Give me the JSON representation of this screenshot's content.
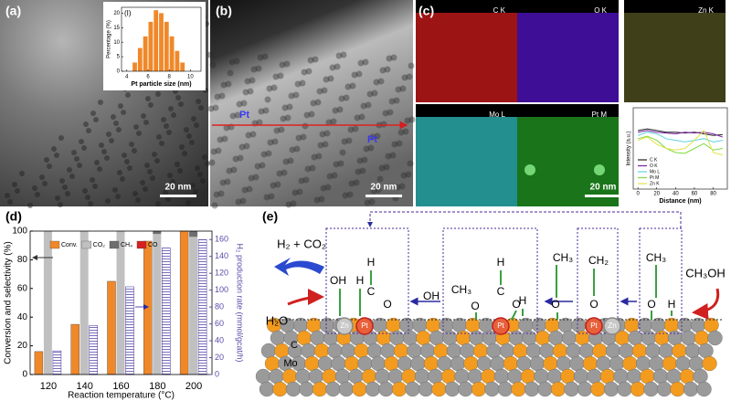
{
  "panels": {
    "a": {
      "label": "(a)",
      "scale_bar": "20 nm"
    },
    "b": {
      "label": "(b)",
      "scale_bar": "20 nm",
      "markers": [
        "Pt",
        "Pt"
      ]
    },
    "c": {
      "label": "(c)",
      "scale_bar": "20 nm",
      "maps": [
        "C K",
        "O K",
        "Zn K",
        "Mo L",
        "Pt M"
      ]
    },
    "d": {
      "label": "(d)"
    },
    "e": {
      "label": "(e)"
    }
  },
  "chart_data": [
    {
      "type": "histogram",
      "label": "(I)",
      "bins": [
        4.5,
        5,
        5.5,
        6,
        6.5,
        7,
        7.5,
        8,
        8.5,
        9,
        9.5
      ],
      "values": [
        3,
        8,
        12,
        17,
        21,
        20,
        17,
        12,
        7,
        3
      ],
      "color": "#f0882a",
      "xlabel": "Pt particle size (nm)",
      "ylabel": "Percentage (%)",
      "xlim": [
        3.5,
        11
      ],
      "ylim": [
        0,
        22
      ],
      "xticks": [
        4,
        6,
        8,
        10
      ],
      "yticks": [
        0,
        5,
        10,
        15,
        20
      ]
    },
    {
      "type": "line",
      "x": [
        0,
        10,
        20,
        30,
        40,
        50,
        60,
        70,
        80,
        90
      ],
      "series": [
        {
          "name": "C K",
          "color": "#222222",
          "values": [
            0.72,
            0.74,
            0.72,
            0.7,
            0.7,
            0.69,
            0.7,
            0.68,
            0.66,
            0.67
          ]
        },
        {
          "name": "O K",
          "color": "#7b1fa2",
          "values": [
            0.7,
            0.72,
            0.7,
            0.69,
            0.68,
            0.7,
            0.69,
            0.7,
            0.68,
            0.64
          ]
        },
        {
          "name": "Mo L",
          "color": "#5fd3e0",
          "values": [
            0.66,
            0.7,
            0.68,
            0.62,
            0.6,
            0.58,
            0.6,
            0.62,
            0.58,
            0.6
          ]
        },
        {
          "name": "Pt M",
          "color": "#7ddc3c",
          "values": [
            0.62,
            0.65,
            0.6,
            0.5,
            0.45,
            0.44,
            0.5,
            0.56,
            0.48,
            0.5
          ]
        },
        {
          "name": "Zn K",
          "color": "#e6e04a",
          "values": [
            0.6,
            0.64,
            0.55,
            0.5,
            0.48,
            0.5,
            0.6,
            0.72,
            0.45,
            0.42
          ]
        }
      ],
      "xlabel": "Distance (nm)",
      "ylabel": "Intensity (a.u.)",
      "xlim": [
        -5,
        95
      ],
      "ylim": [
        0,
        1
      ],
      "xticks": [
        0,
        20,
        40,
        60,
        80
      ]
    },
    {
      "type": "bar",
      "categories": [
        "120",
        "140",
        "160",
        "180",
        "200"
      ],
      "series": [
        {
          "name": "Conv.",
          "color": "#f0882a",
          "values": [
            16,
            35,
            65,
            93,
            100
          ]
        },
        {
          "name": "CO₂",
          "color": "#c0c0c0",
          "values": [
            100,
            100,
            100,
            98,
            96
          ]
        },
        {
          "name": "CH₄",
          "color": "#6e6e6e",
          "values": [
            0,
            0,
            0,
            2,
            4
          ]
        },
        {
          "name": "CO",
          "color": "#d62020",
          "values": [
            0,
            0,
            0,
            0,
            0
          ]
        },
        {
          "color": "#5b4aa8",
          "axis": "y2",
          "values": [
            28,
            58,
            104,
            150,
            160
          ]
        }
      ],
      "xlabel": "Reaction temperature (°C)",
      "ylabel": "Conversion and selectivity (%)",
      "y2label": "H₂ production rate (mmol/gcat/h)",
      "ylim": [
        0,
        100
      ],
      "yticks": [
        0,
        20,
        40,
        60,
        80,
        100
      ],
      "y2lim": [
        0,
        170
      ],
      "y2ticks": [
        0,
        20,
        40,
        60,
        80,
        100,
        120,
        140,
        160
      ]
    }
  ],
  "diagram": {
    "nodes": [
      {
        "label": "H₂ + CO₂"
      },
      {
        "label": "H₂O"
      },
      {
        "label": "OH"
      },
      {
        "label": "H"
      },
      {
        "label": "H"
      },
      {
        "label": "C"
      },
      {
        "label": "O"
      },
      {
        "label": "OH"
      },
      {
        "label": "CH₃"
      },
      {
        "label": "O"
      },
      {
        "label": "H"
      },
      {
        "label": "C"
      },
      {
        "label": "O"
      },
      {
        "label": "H"
      },
      {
        "label": "CH₃"
      },
      {
        "label": "O"
      },
      {
        "label": "CH₂"
      },
      {
        "label": "O"
      },
      {
        "label": "CH₃"
      },
      {
        "label": "O"
      },
      {
        "label": "H"
      },
      {
        "label": "CH₃OH"
      },
      {
        "label": "C"
      },
      {
        "label": "Mo"
      },
      {
        "label": "Pt"
      },
      {
        "label": "Zn"
      },
      {
        "label": "Pt"
      },
      {
        "label": "Pt"
      },
      {
        "label": "Zn"
      }
    ]
  }
}
